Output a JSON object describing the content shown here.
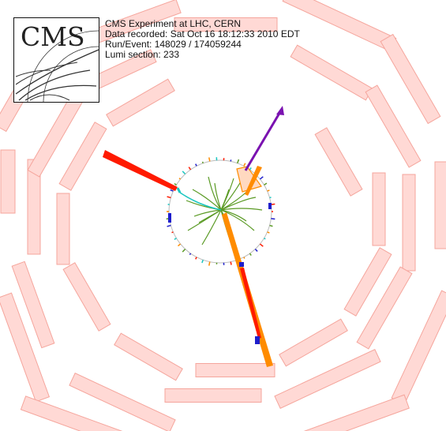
{
  "logo": {
    "text": "CMS"
  },
  "event_info": {
    "experiment": "CMS Experiment at LHC, CERN",
    "recorded": "Data recorded: Sat Oct 16 18:12:33 2010 EDT",
    "run_event": "Run/Event: 148029 / 174059244",
    "lumi": "Lumi section: 233"
  },
  "colors": {
    "detector_fill": "#ffd9d5",
    "detector_stroke": "#f5a59c",
    "tracker_circle": "#bbbbbb",
    "tracks": "#5a9a24",
    "jet_red": "#ff1a00",
    "jet_orange": "#ff8c00",
    "met_arrow": "#7a12b0",
    "muon_hits": "#1e1ecc",
    "electron_track": "#19c6c0"
  }
}
